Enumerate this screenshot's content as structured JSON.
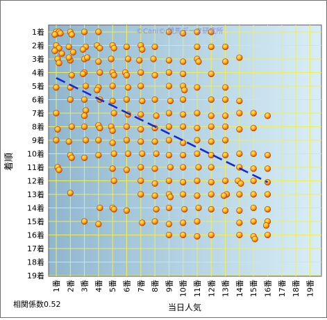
{
  "watermark": "©Cani© 競馬データ研究所",
  "chart_data": {
    "type": "scatter",
    "title": "",
    "xlabel": "当日人気",
    "ylabel": "着順",
    "x_ticks": [
      "1番",
      "2番",
      "3番",
      "4番",
      "5番",
      "6番",
      "7番",
      "8番",
      "9番",
      "10番",
      "11番",
      "12番",
      "13番",
      "14番",
      "15番",
      "16番",
      "17番",
      "18番",
      "19番"
    ],
    "y_ticks": [
      "1着",
      "2着",
      "3着",
      "4着",
      "5着",
      "6着",
      "7着",
      "8着",
      "9着",
      "10着",
      "11着",
      "12着",
      "13着",
      "14着",
      "15着",
      "16着",
      "17着",
      "18着",
      "19着"
    ],
    "xlim": [
      1,
      19
    ],
    "ylim": [
      1,
      19
    ],
    "y_inverted": true,
    "grid": true,
    "annotation": "相関係数0.52",
    "trend_line": {
      "from": [
        1,
        4.4
      ],
      "to": [
        16,
        12.1
      ],
      "color": "#1428d8",
      "style": "dashed"
    },
    "colors": {
      "point_outer": "#d24a0a",
      "point_inner": "#ffd21a",
      "grid": "#f0ed5a",
      "background_left": "#8fb6cf",
      "background_right": "#d8eef6"
    },
    "points": [
      [
        1,
        1
      ],
      [
        1.1,
        1.1
      ],
      [
        1.2,
        1
      ],
      [
        0.9,
        1.2
      ],
      [
        1.3,
        1.1
      ],
      [
        1,
        2
      ],
      [
        1.2,
        2.2
      ],
      [
        0.9,
        2.4
      ],
      [
        1.4,
        2.6
      ],
      [
        1.1,
        3
      ],
      [
        1.2,
        3.3
      ],
      [
        1,
        5.1
      ],
      [
        1,
        7
      ],
      [
        1.1,
        8.2
      ],
      [
        1,
        9
      ],
      [
        1.1,
        11
      ],
      [
        1.2,
        11.2
      ],
      [
        2,
        1
      ],
      [
        2.1,
        1.2
      ],
      [
        1.9,
        2.1
      ],
      [
        2.2,
        2.5
      ],
      [
        2,
        3.1
      ],
      [
        1.9,
        2.9
      ],
      [
        2.1,
        4.2
      ],
      [
        2,
        5.1
      ],
      [
        2,
        6
      ],
      [
        2.1,
        8
      ],
      [
        1.9,
        9.1
      ],
      [
        2,
        10.1
      ],
      [
        2.1,
        10.3
      ],
      [
        2,
        12.9
      ],
      [
        3,
        1
      ],
      [
        3.1,
        2.1
      ],
      [
        2.9,
        2.3
      ],
      [
        3,
        3
      ],
      [
        3.2,
        2.9
      ],
      [
        3,
        4
      ],
      [
        2.9,
        4.1
      ],
      [
        3.1,
        5
      ],
      [
        3,
        6
      ],
      [
        3.1,
        6.8
      ],
      [
        3,
        7.2
      ],
      [
        3,
        8
      ],
      [
        3.1,
        9
      ],
      [
        3,
        10.3
      ],
      [
        3,
        15
      ],
      [
        4,
        1
      ],
      [
        3.9,
        2
      ],
      [
        4.1,
        2.2
      ],
      [
        4,
        3.2
      ],
      [
        4.1,
        4
      ],
      [
        4,
        5.1
      ],
      [
        3.9,
        5.3
      ],
      [
        4.1,
        6
      ],
      [
        4,
        7.9
      ],
      [
        4.1,
        8.1
      ],
      [
        4,
        9
      ],
      [
        4,
        10.1
      ],
      [
        4.1,
        14
      ],
      [
        4,
        15.2
      ],
      [
        5,
        2
      ],
      [
        5.1,
        2.2
      ],
      [
        4.9,
        3
      ],
      [
        5,
        4
      ],
      [
        5.1,
        4.2
      ],
      [
        5,
        5
      ],
      [
        5,
        6.1
      ],
      [
        5.1,
        7
      ],
      [
        4.9,
        8
      ],
      [
        5,
        8.3
      ],
      [
        5,
        9.2
      ],
      [
        5.1,
        10
      ],
      [
        5,
        11.1
      ],
      [
        5.1,
        12
      ],
      [
        5,
        14
      ],
      [
        5.1,
        14.1
      ],
      [
        6,
        2.1
      ],
      [
        6.1,
        3
      ],
      [
        5.9,
        4
      ],
      [
        6,
        4.2
      ],
      [
        6.1,
        5.1
      ],
      [
        6,
        6
      ],
      [
        6.1,
        7.1
      ],
      [
        6,
        8
      ],
      [
        6,
        9
      ],
      [
        6.1,
        10
      ],
      [
        6,
        11.2
      ],
      [
        6,
        14.2
      ],
      [
        7,
        2
      ],
      [
        7.1,
        2.3
      ],
      [
        6.9,
        3.1
      ],
      [
        7,
        4
      ],
      [
        7,
        5
      ],
      [
        7.1,
        6.1
      ],
      [
        7,
        7.1
      ],
      [
        7,
        8.2
      ],
      [
        7,
        9.1
      ],
      [
        7.1,
        10
      ],
      [
        7,
        11
      ],
      [
        7,
        12
      ],
      [
        7,
        13
      ],
      [
        7.1,
        15.1
      ],
      [
        8,
        2.1
      ],
      [
        7.9,
        3
      ],
      [
        8,
        4.2
      ],
      [
        8,
        6
      ],
      [
        8.1,
        7.2
      ],
      [
        8,
        8.1
      ],
      [
        8,
        9.1
      ],
      [
        8.1,
        10
      ],
      [
        8,
        11.1
      ],
      [
        8,
        12.2
      ],
      [
        8,
        13.1
      ],
      [
        8.1,
        14.1
      ],
      [
        8,
        15
      ],
      [
        9,
        1
      ],
      [
        9,
        3.1
      ],
      [
        9,
        4
      ],
      [
        9,
        5
      ],
      [
        9.1,
        6.1
      ],
      [
        9,
        7
      ],
      [
        9,
        8
      ],
      [
        9,
        9
      ],
      [
        9,
        10.1
      ],
      [
        9.1,
        11
      ],
      [
        9,
        12
      ],
      [
        9,
        13
      ],
      [
        9.1,
        13.2
      ],
      [
        9,
        14
      ],
      [
        9,
        15.2
      ],
      [
        9,
        16
      ],
      [
        10,
        1.1
      ],
      [
        10,
        3.2
      ],
      [
        10,
        4.1
      ],
      [
        10,
        5
      ],
      [
        10.1,
        5.3
      ],
      [
        10,
        6
      ],
      [
        10,
        7.1
      ],
      [
        10,
        8
      ],
      [
        10,
        9.2
      ],
      [
        10,
        10.1
      ],
      [
        10,
        11
      ],
      [
        10,
        12.1
      ],
      [
        10,
        13
      ],
      [
        10.1,
        14.1
      ],
      [
        10,
        15.1
      ],
      [
        10,
        16
      ],
      [
        11,
        1
      ],
      [
        11,
        2.1
      ],
      [
        11,
        3
      ],
      [
        11.1,
        3.2
      ],
      [
        11,
        5.1
      ],
      [
        11,
        7
      ],
      [
        11,
        8.1
      ],
      [
        11,
        9
      ],
      [
        11,
        10
      ],
      [
        11.1,
        11
      ],
      [
        11,
        12
      ],
      [
        11,
        13.1
      ],
      [
        11.1,
        14
      ],
      [
        11,
        15
      ],
      [
        11,
        16.1
      ],
      [
        12,
        1
      ],
      [
        12,
        2.1
      ],
      [
        12,
        4.1
      ],
      [
        12,
        6
      ],
      [
        12,
        7.2
      ],
      [
        12,
        8
      ],
      [
        12,
        9.1
      ],
      [
        12,
        10.1
      ],
      [
        12,
        11
      ],
      [
        12,
        12.1
      ],
      [
        12,
        13
      ],
      [
        12,
        14.1
      ],
      [
        12,
        16
      ],
      [
        13,
        2.1
      ],
      [
        13,
        3.2
      ],
      [
        13,
        5.1
      ],
      [
        13,
        6
      ],
      [
        13,
        7.2
      ],
      [
        13,
        8
      ],
      [
        13,
        9
      ],
      [
        13,
        10.1
      ],
      [
        13,
        12
      ],
      [
        13.1,
        13
      ],
      [
        12.9,
        13.1
      ],
      [
        13,
        14.2
      ],
      [
        14,
        2.9
      ],
      [
        14,
        6.1
      ],
      [
        14,
        7
      ],
      [
        14,
        8.2
      ],
      [
        14,
        10
      ],
      [
        14,
        11
      ],
      [
        13.9,
        12
      ],
      [
        14.1,
        12.2
      ],
      [
        14,
        13
      ],
      [
        14,
        14.2
      ],
      [
        14,
        15.1
      ],
      [
        14,
        16
      ],
      [
        15,
        7
      ],
      [
        15,
        8.1
      ],
      [
        15,
        10
      ],
      [
        15,
        11.1
      ],
      [
        15,
        12
      ],
      [
        15,
        13
      ],
      [
        15,
        14
      ],
      [
        15,
        15
      ],
      [
        15,
        16.1
      ],
      [
        15.1,
        16.3
      ],
      [
        16,
        7.2
      ],
      [
        16,
        10.1
      ],
      [
        16,
        11.1
      ],
      [
        16,
        12.1
      ],
      [
        16,
        13
      ],
      [
        16,
        14.1
      ],
      [
        16,
        15
      ],
      [
        15.9,
        15.3
      ],
      [
        16,
        16
      ]
    ]
  }
}
